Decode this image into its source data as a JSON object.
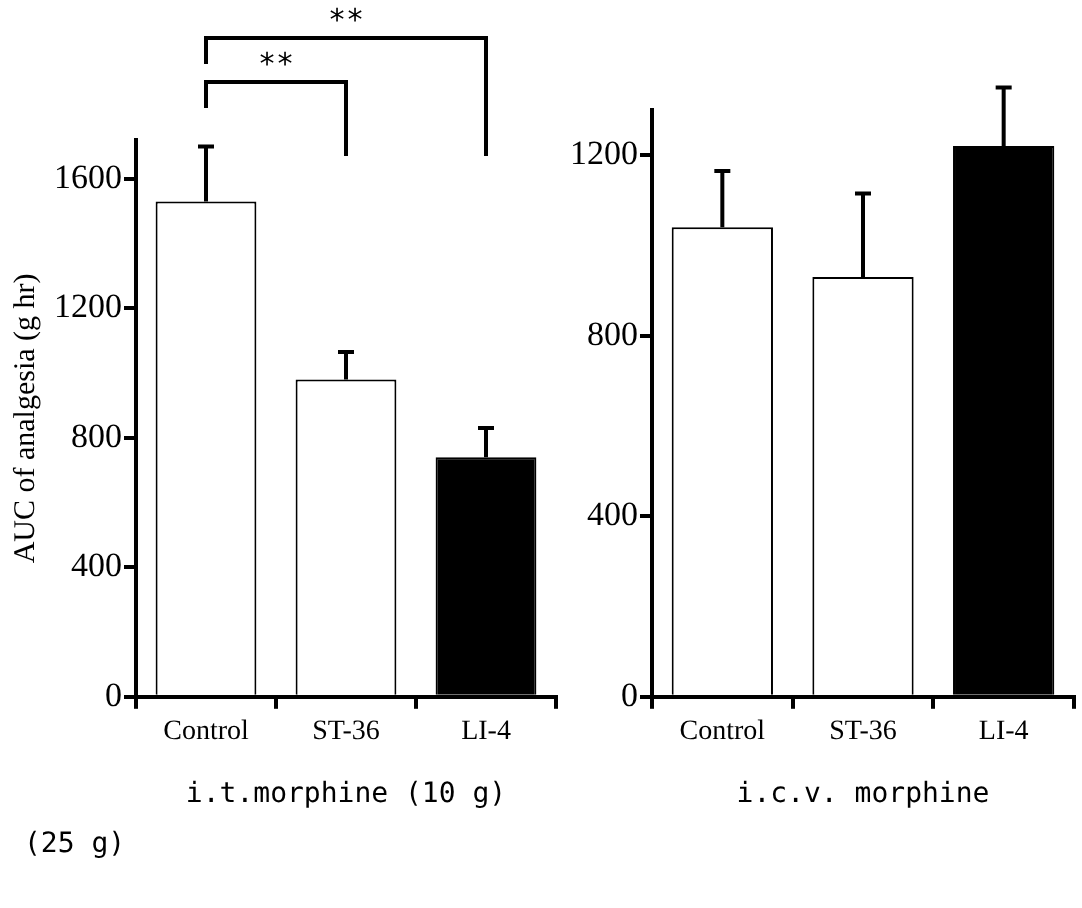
{
  "chart_data": [
    {
      "type": "bar",
      "ylabel": "AUC of analgesia (g hr)",
      "xlabel": "i.t.morphine (10 g)",
      "categories": [
        "Control",
        "ST-36",
        "LI-4"
      ],
      "values": [
        1530,
        980,
        740
      ],
      "colors": [
        "#ffffff",
        "#ffffff",
        "#000000"
      ],
      "errors": [
        170,
        85,
        90
      ],
      "ylim": [
        0,
        1720
      ],
      "yticks": [
        0,
        400,
        800,
        1200,
        1600
      ],
      "annotations": [
        "**",
        "**"
      ]
    },
    {
      "type": "bar",
      "xlabel": "i.c.v. morphine",
      "categories": [
        "Control",
        "ST-36",
        "LI-4"
      ],
      "values": [
        1040,
        930,
        1220
      ],
      "colors": [
        "#ffffff",
        "#ffffff",
        "#000000"
      ],
      "errors": [
        125,
        185,
        130
      ],
      "ylim": [
        0,
        1300
      ],
      "yticks": [
        0,
        400,
        800,
        1200
      ],
      "annotations": [
        "(25 g)"
      ]
    }
  ]
}
